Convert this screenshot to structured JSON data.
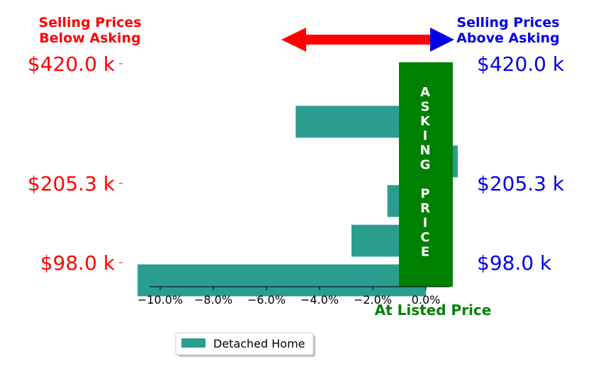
{
  "colors": {
    "below": "#ff0000",
    "above": "#0000e6",
    "bar": "#2a9d8f",
    "asking": "#008000",
    "axis": "#000000"
  },
  "headers": {
    "below_line1": "Selling Prices",
    "below_line2": "Below Asking",
    "above_line1": "Selling Prices",
    "above_line2": "Above Asking"
  },
  "asking_label": "ASKING PRICE",
  "listed_label": "At Listed Price",
  "chart_data": {
    "type": "bar",
    "orientation": "horizontal",
    "xlim": [
      -11.0,
      1.2
    ],
    "xticks": [
      -10,
      -8,
      -6,
      -4,
      -2,
      0
    ],
    "xtick_labels": [
      "−10.0%",
      "−8.0%",
      "−6.0%",
      "−4.0%",
      "−2.0%",
      "0.0%"
    ],
    "price_levels": [
      {
        "label": "$420.0 k",
        "slot": 0
      },
      {
        "label": "$205.3 k",
        "slot": 3
      },
      {
        "label": "$98.0 k",
        "slot": 5
      }
    ],
    "series": [
      {
        "name": "Detached Home",
        "values": [
          null,
          -4.9,
          1.2,
          -1.45,
          -2.8,
          -10.85
        ]
      }
    ],
    "legend": {
      "placement": "bottom-center"
    }
  }
}
